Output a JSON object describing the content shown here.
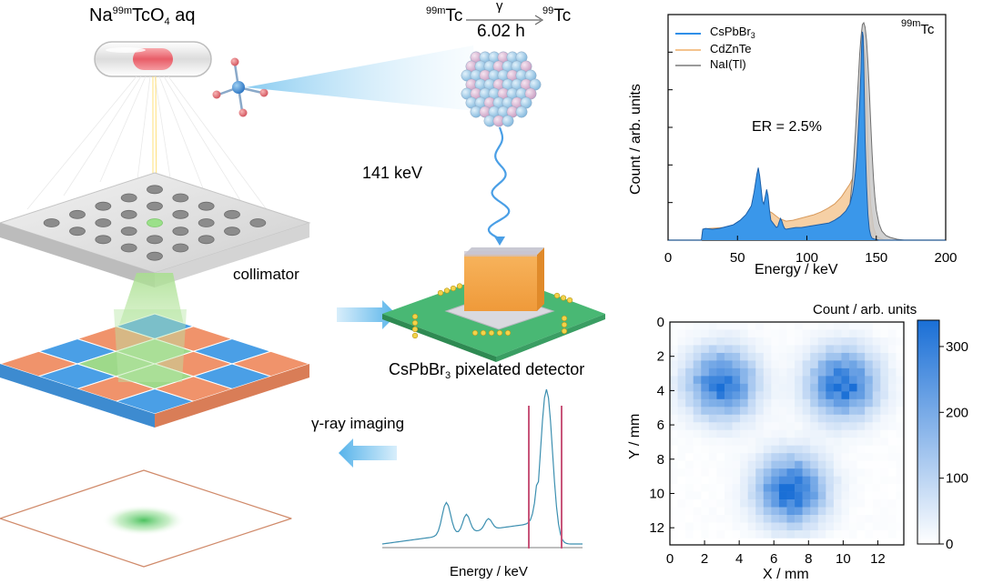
{
  "schematic": {
    "source_label": {
      "pre": "Na",
      "sup": "99m",
      "mid": "TcO",
      "sub": "4",
      "post": " aq"
    },
    "decay": {
      "from_sup": "99m",
      "from": "Tc",
      "gamma": "γ",
      "to_sup": "99",
      "to": "Tc",
      "half_life": "6.02 h"
    },
    "energy_label": "141 keV",
    "collimator_label": "collimator",
    "detector_label": {
      "pre": "CsPbBr",
      "sub": "3",
      "post": " pixelated detector"
    },
    "imaging_label": "γ-ray imaging",
    "mini_spectrum_xlabel": "Energy / keV"
  },
  "colors": {
    "cspbbr3": "#2f8fe8",
    "cdznte": "#f4c38e",
    "nai": "#9a9a9a",
    "tile_blue": "#4a9fe6",
    "tile_orange": "#f0936b",
    "pcb_green": "#4cb878",
    "crystal_orange": "#f5a24a",
    "heat_max": "#1a6fd6"
  },
  "chart_data": [
    {
      "type": "area",
      "title": "",
      "annotation_top_right": {
        "sup": "99m",
        "text": "Tc"
      },
      "annotation_er": "ER = 2.5%",
      "xlabel": "Energy / keV",
      "ylabel": "Count / arb. units",
      "xlim": [
        0,
        200
      ],
      "xticks": [
        0,
        50,
        100,
        150,
        200
      ],
      "y_tick_labels": false,
      "legend_position": "top-left",
      "series": [
        {
          "name_pre": "CsPbBr",
          "name_sub": "3",
          "name": "CsPbBr3",
          "color": "#2f8fe8",
          "x": [
            0,
            24,
            25,
            27,
            32,
            37,
            42,
            47,
            52,
            56,
            58,
            60,
            62,
            64,
            65,
            66,
            67,
            68,
            69,
            70,
            71,
            72,
            73,
            74,
            75,
            76,
            77,
            78,
            79,
            80,
            81,
            82,
            83,
            84,
            85,
            88,
            92,
            96,
            100,
            104,
            108,
            112,
            116,
            120,
            124,
            128,
            131,
            133,
            134,
            135,
            136,
            137,
            138,
            139,
            139.5,
            140,
            140.5,
            141,
            141.5,
            142,
            143,
            144,
            145,
            146,
            147,
            149,
            152,
            156,
            162,
            200
          ],
          "y": [
            0,
            0,
            12,
            13,
            12,
            13,
            15,
            17,
            22,
            28,
            33,
            38,
            53,
            73,
            80,
            71,
            57,
            43,
            40,
            48,
            56,
            49,
            34,
            22,
            20,
            18,
            16,
            14,
            15,
            20,
            24,
            21,
            16,
            13,
            12,
            13,
            14,
            14,
            15,
            16,
            17,
            18,
            19,
            22,
            26,
            32,
            40,
            52,
            62,
            75,
            92,
            120,
            150,
            190,
            215,
            230,
            225,
            195,
            150,
            110,
            60,
            28,
            12,
            5,
            2,
            1,
            0,
            0,
            0,
            0
          ]
        },
        {
          "name": "CdZnTe",
          "color": "#f4c38e",
          "x": [
            0,
            24,
            25,
            30,
            40,
            50,
            55,
            60,
            65,
            70,
            75,
            80,
            85,
            90,
            95,
            100,
            105,
            110,
            115,
            120,
            125,
            128,
            131,
            134,
            136,
            138,
            139,
            140,
            141,
            142,
            143,
            144,
            145,
            146,
            148,
            150,
            153,
            156,
            160,
            200
          ],
          "y": [
            0,
            0,
            12,
            13,
            14,
            16,
            19,
            24,
            30,
            34,
            30,
            24,
            21,
            22,
            24,
            26,
            28,
            31,
            35,
            40,
            48,
            55,
            62,
            72,
            90,
            130,
            170,
            205,
            215,
            200,
            160,
            110,
            70,
            40,
            14,
            5,
            2,
            0,
            0,
            0
          ]
        },
        {
          "name": "NaI(Tl)",
          "color": "#9a9a9a",
          "x": [
            120,
            125,
            128,
            131,
            133,
            135,
            137,
            138,
            139,
            140,
            141,
            142,
            143,
            144,
            145,
            146,
            147,
            148,
            149,
            150,
            152,
            154,
            157,
            160,
            165,
            170,
            180,
            200
          ],
          "y": [
            8,
            12,
            20,
            40,
            70,
            120,
            175,
            205,
            225,
            238,
            240,
            235,
            220,
            195,
            165,
            130,
            95,
            68,
            48,
            33,
            18,
            10,
            5,
            3,
            1,
            0,
            0,
            0
          ]
        }
      ]
    },
    {
      "type": "heatmap",
      "title": "",
      "xlabel": "X / mm",
      "ylabel": "Y / mm",
      "colorbar_label": "Count / arb. units",
      "xlim": [
        0,
        13.5
      ],
      "ylim": [
        0,
        13
      ],
      "xticks": [
        0,
        2,
        4,
        6,
        8,
        10,
        12
      ],
      "yticks": [
        0,
        2,
        4,
        6,
        8,
        10,
        12
      ],
      "y_inverted": true,
      "colorbar_ticks": [
        0,
        100,
        200,
        300
      ],
      "value_range": [
        0,
        340
      ],
      "grid": {
        "cols": 30,
        "rows": 28,
        "cell_mm": 0.45
      },
      "spots": [
        {
          "cx_mm": 3.0,
          "cy_mm": 3.6,
          "peak": 320,
          "sigma_mm": 1.3
        },
        {
          "cx_mm": 10.0,
          "cy_mm": 3.6,
          "peak": 330,
          "sigma_mm": 1.3
        },
        {
          "cx_mm": 7.0,
          "cy_mm": 9.8,
          "peak": 340,
          "sigma_mm": 1.3
        }
      ]
    }
  ]
}
